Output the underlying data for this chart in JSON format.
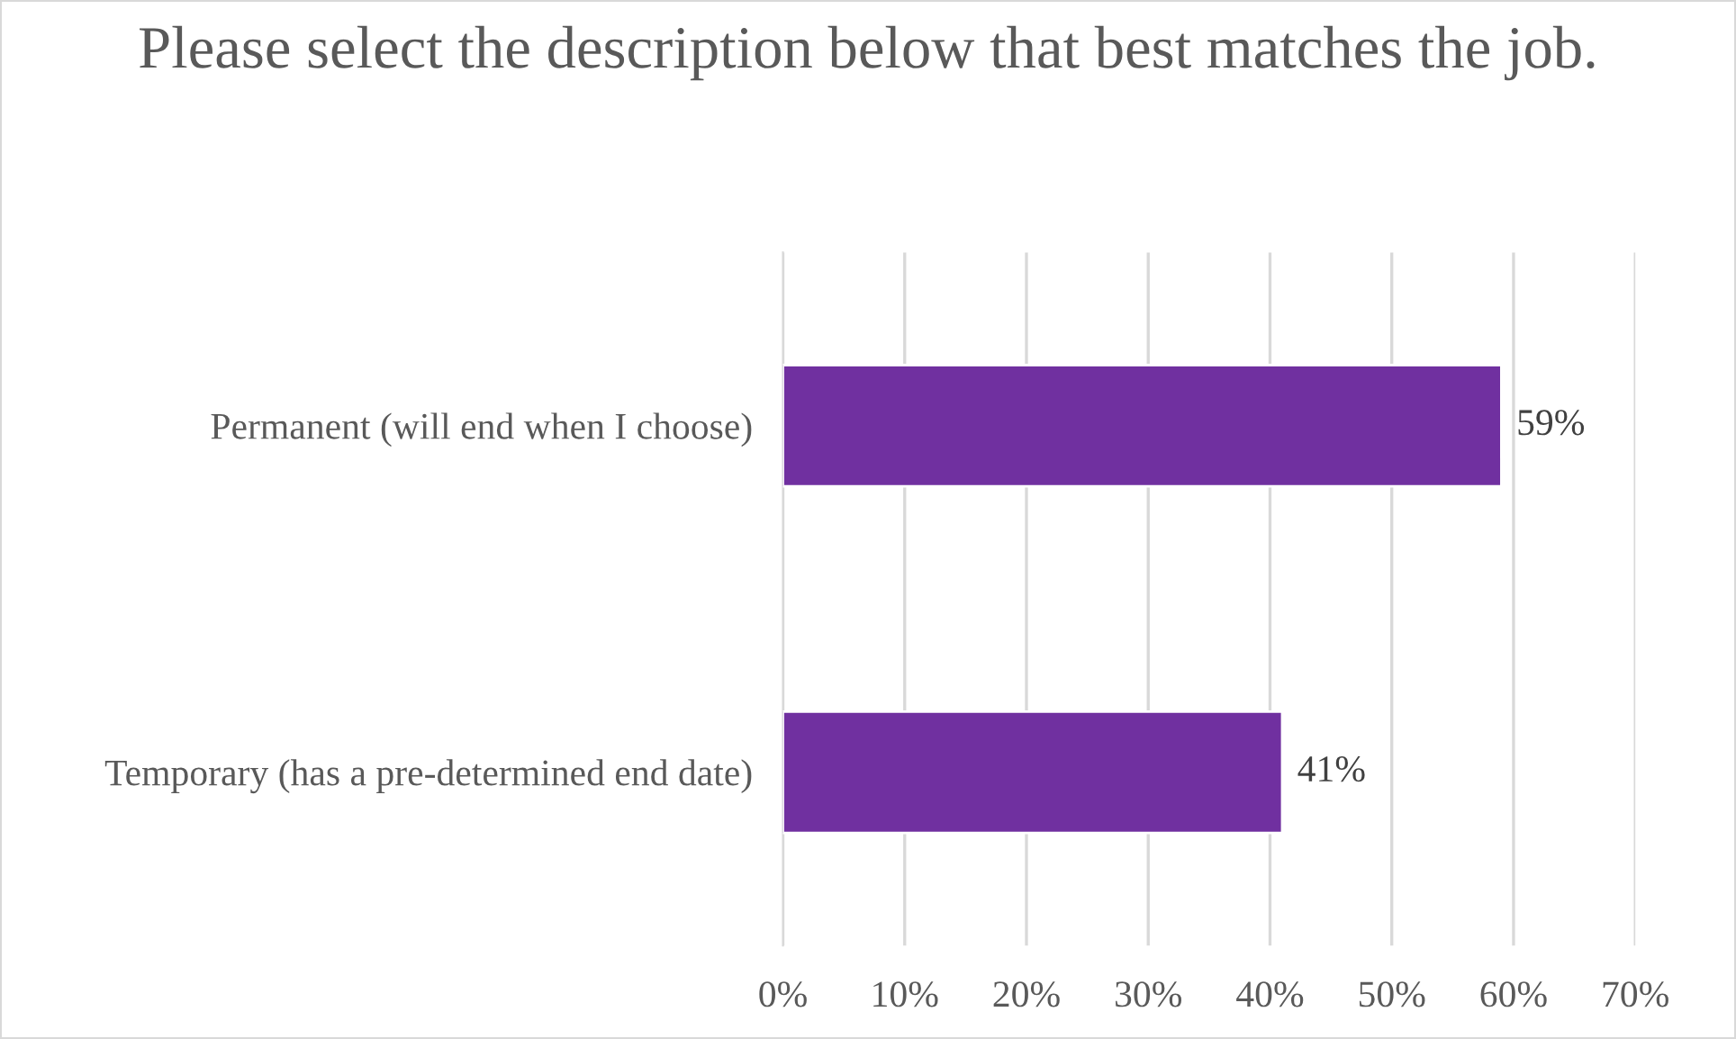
{
  "chart_data": {
    "type": "bar",
    "orientation": "horizontal",
    "title": "Please select the description below that best matches the job.",
    "categories": [
      "Permanent (will end when I choose)",
      "Temporary (has a pre-determined end date)"
    ],
    "values": [
      59,
      41
    ],
    "value_labels": [
      "59%",
      "41%"
    ],
    "color": "#7030a0",
    "xlim": [
      0,
      70
    ],
    "xticks": [
      {
        "value": 0,
        "label": "0%"
      },
      {
        "value": 10,
        "label": "10%"
      },
      {
        "value": 20,
        "label": "20%"
      },
      {
        "value": 30,
        "label": "30%"
      },
      {
        "value": 40,
        "label": "40%"
      },
      {
        "value": 50,
        "label": "50%"
      },
      {
        "value": 60,
        "label": "60%"
      },
      {
        "value": 70,
        "label": "70%"
      }
    ],
    "grid": "x",
    "legend": false
  }
}
